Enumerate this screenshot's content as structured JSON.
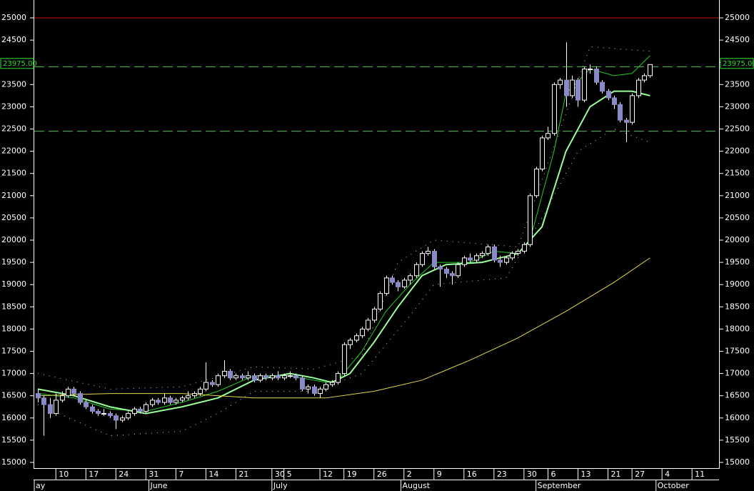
{
  "chart_data": {
    "type": "candlestick",
    "ylim": [
      15000,
      25000
    ],
    "yticks": [
      15000,
      15500,
      16000,
      16500,
      17000,
      17500,
      18000,
      18500,
      19000,
      19500,
      20000,
      20500,
      21000,
      21500,
      22000,
      22500,
      23000,
      23500,
      24000,
      24500,
      25000
    ],
    "xlim": [
      -0.6,
      113.5
    ],
    "xticks": [
      {
        "value": 3,
        "label": "10"
      },
      {
        "value": 8,
        "label": "17"
      },
      {
        "value": 13,
        "label": "24"
      },
      {
        "value": 18,
        "label": "31"
      },
      {
        "value": 23,
        "label": "7"
      },
      {
        "value": 28,
        "label": "14"
      },
      {
        "value": 33,
        "label": "21"
      },
      {
        "value": 39,
        "label": "30"
      },
      {
        "value": 41,
        "label": "5"
      },
      {
        "value": 47,
        "label": "12"
      },
      {
        "value": 51,
        "label": "19"
      },
      {
        "value": 56,
        "label": "26"
      },
      {
        "value": 61,
        "label": "2"
      },
      {
        "value": 66,
        "label": "9"
      },
      {
        "value": 71,
        "label": "16"
      },
      {
        "value": 76,
        "label": "23"
      },
      {
        "value": 81,
        "label": "30"
      },
      {
        "value": 85,
        "label": "6"
      },
      {
        "value": 90,
        "label": "13"
      },
      {
        "value": 95,
        "label": "21"
      },
      {
        "value": 99,
        "label": "27"
      },
      {
        "value": 104,
        "label": "4"
      },
      {
        "value": 109,
        "label": "11"
      }
    ],
    "months": [
      {
        "value": -0.6,
        "label": "ay"
      },
      {
        "value": 18.5,
        "label": "June"
      },
      {
        "value": 39,
        "label": "July"
      },
      {
        "value": 60.5,
        "label": "August"
      },
      {
        "value": 83,
        "label": "September"
      },
      {
        "value": 103,
        "label": "October"
      }
    ],
    "colors": {
      "up_fill": "#000000",
      "down_fill": "#8a8ac8",
      "outline": "#ffffff"
    },
    "ohlc": [
      [
        16550,
        16650,
        16350,
        16450
      ],
      [
        16450,
        16500,
        15600,
        16300
      ],
      [
        16300,
        16450,
        16000,
        16100
      ],
      [
        16100,
        16550,
        16050,
        16400
      ],
      [
        16400,
        16600,
        16350,
        16500
      ],
      [
        16500,
        16700,
        16450,
        16650
      ],
      [
        16650,
        16700,
        16500,
        16550
      ],
      [
        16550,
        16600,
        16300,
        16350
      ],
      [
        16350,
        16400,
        16200,
        16250
      ],
      [
        16250,
        16300,
        16100,
        16150
      ],
      [
        16150,
        16200,
        16050,
        16100
      ],
      [
        16100,
        16200,
        16050,
        16100
      ],
      [
        16100,
        16150,
        16000,
        16050
      ],
      [
        16050,
        16100,
        15750,
        15950
      ],
      [
        15950,
        16050,
        15900,
        16000
      ],
      [
        16000,
        16150,
        15950,
        16100
      ],
      [
        16100,
        16250,
        16050,
        16200
      ],
      [
        16200,
        16250,
        16100,
        16150
      ],
      [
        16150,
        16350,
        16100,
        16300
      ],
      [
        16300,
        16450,
        16250,
        16400
      ],
      [
        16400,
        16450,
        16300,
        16350
      ],
      [
        16350,
        16550,
        16300,
        16450
      ],
      [
        16450,
        16500,
        16300,
        16350
      ],
      [
        16350,
        16450,
        16300,
        16400
      ],
      [
        16400,
        16500,
        16350,
        16450
      ],
      [
        16450,
        16600,
        16400,
        16500
      ],
      [
        16500,
        16600,
        16450,
        16550
      ],
      [
        16550,
        16700,
        16500,
        16650
      ],
      [
        16650,
        17250,
        16600,
        16800
      ],
      [
        16800,
        16850,
        16700,
        16750
      ],
      [
        16750,
        17000,
        16700,
        16950
      ],
      [
        16950,
        17300,
        16900,
        17050
      ],
      [
        17050,
        17100,
        16850,
        16900
      ],
      [
        16900,
        17000,
        16850,
        16950
      ],
      [
        16950,
        17000,
        16850,
        16900
      ],
      [
        16900,
        17050,
        16850,
        16950
      ],
      [
        16950,
        17000,
        16800,
        16850
      ],
      [
        16850,
        17000,
        16800,
        16950
      ],
      [
        16950,
        17000,
        16850,
        16900
      ],
      [
        16900,
        17000,
        16850,
        16950
      ],
      [
        16950,
        17050,
        16850,
        16900
      ],
      [
        16900,
        17000,
        16850,
        16950
      ],
      [
        16950,
        17050,
        16900,
        16950
      ],
      [
        16950,
        17000,
        16850,
        16900
      ],
      [
        16900,
        16950,
        16600,
        16650
      ],
      [
        16650,
        16750,
        16550,
        16700
      ],
      [
        16700,
        16750,
        16500,
        16550
      ],
      [
        16550,
        16700,
        16450,
        16650
      ],
      [
        16650,
        16800,
        16600,
        16750
      ],
      [
        16750,
        16850,
        16700,
        16800
      ],
      [
        16800,
        17050,
        16750,
        17000
      ],
      [
        17000,
        17700,
        16950,
        17650
      ],
      [
        17650,
        17800,
        17550,
        17750
      ],
      [
        17750,
        17900,
        17700,
        17850
      ],
      [
        17850,
        18050,
        17800,
        18000
      ],
      [
        18000,
        18250,
        17950,
        18200
      ],
      [
        18200,
        18500,
        18150,
        18450
      ],
      [
        18450,
        18850,
        18400,
        18800
      ],
      [
        18800,
        19200,
        18750,
        19150
      ],
      [
        19150,
        19200,
        19000,
        19050
      ],
      [
        19050,
        19100,
        18850,
        18950
      ],
      [
        18950,
        19150,
        18900,
        19100
      ],
      [
        19100,
        19250,
        19000,
        19200
      ],
      [
        19200,
        19500,
        19150,
        19450
      ],
      [
        19450,
        19750,
        19400,
        19700
      ],
      [
        19700,
        19850,
        19650,
        19750
      ],
      [
        19750,
        19800,
        19350,
        19400
      ],
      [
        19400,
        19450,
        18950,
        19350
      ],
      [
        19350,
        19400,
        19150,
        19250
      ],
      [
        19250,
        19300,
        19000,
        19200
      ],
      [
        19200,
        19500,
        19150,
        19450
      ],
      [
        19450,
        19650,
        19400,
        19600
      ],
      [
        19600,
        19700,
        19500,
        19550
      ],
      [
        19550,
        19700,
        19500,
        19650
      ],
      [
        19650,
        19750,
        19600,
        19700
      ],
      [
        19700,
        19900,
        19650,
        19850
      ],
      [
        19850,
        19900,
        19500,
        19550
      ],
      [
        19550,
        19650,
        19400,
        19500
      ],
      [
        19500,
        19650,
        19450,
        19600
      ],
      [
        19600,
        19750,
        19550,
        19700
      ],
      [
        19700,
        19800,
        19650,
        19750
      ],
      [
        19750,
        19950,
        19700,
        19900
      ],
      [
        19900,
        21050,
        19850,
        21000
      ],
      [
        21000,
        21650,
        20950,
        21600
      ],
      [
        21600,
        22350,
        21550,
        22300
      ],
      [
        22300,
        22550,
        22250,
        22400
      ],
      [
        22400,
        23550,
        22350,
        23500
      ],
      [
        23500,
        23650,
        23400,
        23600
      ],
      [
        23600,
        24450,
        23000,
        23250
      ],
      [
        23250,
        23700,
        23200,
        23600
      ],
      [
        23600,
        23650,
        23000,
        23150
      ],
      [
        23150,
        23900,
        23100,
        23850
      ],
      [
        23850,
        23950,
        23750,
        23850
      ],
      [
        23850,
        23900,
        23500,
        23550
      ],
      [
        23550,
        23600,
        23300,
        23350
      ],
      [
        23350,
        23400,
        23150,
        23200
      ],
      [
        23200,
        23250,
        22950,
        23050
      ],
      [
        23050,
        23100,
        22650,
        22700
      ],
      [
        22700,
        22750,
        22200,
        22650
      ],
      [
        22650,
        23300,
        22600,
        23250
      ],
      [
        23250,
        23650,
        23200,
        23600
      ],
      [
        23600,
        23750,
        23550,
        23700
      ],
      [
        23700,
        23950,
        23650,
        23950
      ]
    ],
    "lines": [
      {
        "color": "#22cc22",
        "width": 1,
        "dotted": false,
        "x": [
          0,
          6,
          12,
          18,
          24,
          30,
          36,
          42,
          48,
          50,
          54,
          58,
          62,
          66,
          72,
          76,
          80,
          82,
          84,
          86,
          88,
          92,
          96,
          99,
          102
        ],
        "values": [
          16550,
          16450,
          16200,
          16150,
          16350,
          16600,
          16950,
          16950,
          16800,
          16850,
          17500,
          18400,
          19000,
          19500,
          19500,
          19750,
          19700,
          20000,
          21000,
          22000,
          23300,
          23850,
          23700,
          23750,
          24150
        ]
      },
      {
        "color": "#99ff99",
        "width": 2,
        "dotted": false,
        "x": [
          0,
          6,
          12,
          18,
          24,
          30,
          36,
          42,
          46,
          49,
          52,
          56,
          60,
          64,
          68,
          74,
          80,
          84,
          88,
          92,
          96,
          99,
          102
        ],
        "values": [
          16650,
          16500,
          16250,
          16100,
          16250,
          16450,
          16850,
          17000,
          16900,
          16800,
          17000,
          17700,
          18500,
          19200,
          19450,
          19500,
          19700,
          20300,
          22000,
          23000,
          23350,
          23350,
          23250
        ]
      },
      {
        "color": "#e6d84a",
        "width": 1,
        "dotted": false,
        "x": [
          0,
          12,
          24,
          36,
          48,
          56,
          64,
          72,
          80,
          88,
          96,
          102
        ],
        "values": [
          16500,
          16550,
          16550,
          16450,
          16450,
          16600,
          16850,
          17300,
          17800,
          18400,
          19050,
          19600
        ]
      },
      {
        "color": "#cccccc",
        "width": 1,
        "dotted": true,
        "x": [
          0,
          12,
          24,
          36,
          46,
          54,
          60,
          66,
          80,
          92,
          102
        ],
        "values": [
          17000,
          16650,
          16700,
          17150,
          17100,
          17400,
          19500,
          20000,
          19850,
          24350,
          24250
        ]
      },
      {
        "color": "#cccccc",
        "width": 1,
        "dotted": true,
        "x": [
          0,
          12,
          24,
          30,
          36,
          46,
          54,
          62,
          66,
          78,
          84,
          90,
          96,
          102
        ],
        "values": [
          16300,
          15600,
          15700,
          16100,
          16600,
          16600,
          17000,
          18300,
          19000,
          19150,
          20500,
          22000,
          22500,
          22200
        ]
      }
    ],
    "hlines": [
      {
        "value": 25000,
        "color": "#cc1111",
        "dashed": false
      },
      {
        "value": 23900,
        "color": "#55bb55",
        "dashed": true
      },
      {
        "value": 22450,
        "color": "#55bb55",
        "dashed": true
      }
    ],
    "price_tag": {
      "value": 23975,
      "label": "23975.00",
      "color": "#33dd33"
    }
  }
}
